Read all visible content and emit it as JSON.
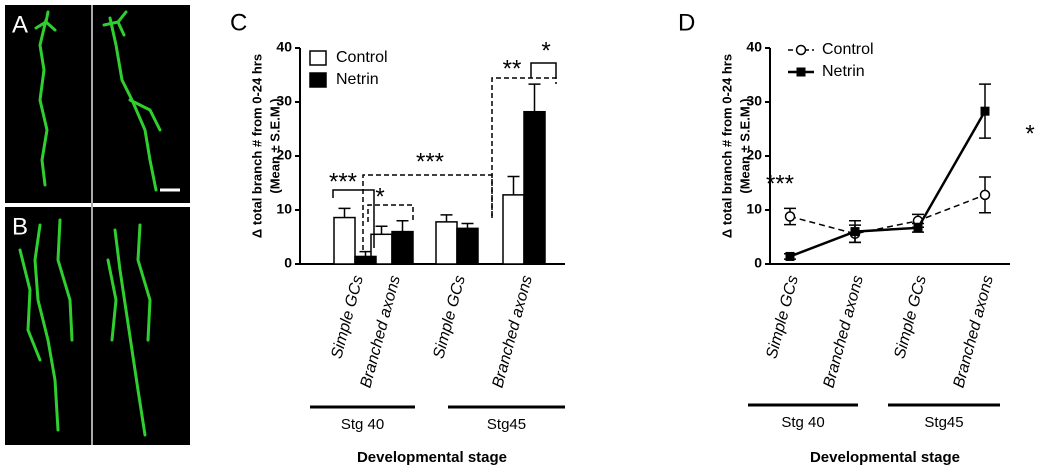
{
  "panels": [
    {
      "label": "A"
    },
    {
      "label": "B"
    }
  ],
  "chart_data": [
    {
      "type": "bar",
      "panel_label": "C",
      "ylabel": [
        "Δ total branch # from 0-24 hrs",
        "(Mean ± S.E.M.)"
      ],
      "xlabel": "Developmental stage",
      "categories": [
        "Simple GCs",
        "Branched axons",
        "Simple GCs",
        "Branched axons"
      ],
      "groups": [
        "Stg 40",
        "Stg45"
      ],
      "series": [
        {
          "name": "Control",
          "color": "#ffffff",
          "values": [
            8.6,
            5.5,
            7.8,
            12.8
          ],
          "errors": [
            1.7,
            1.5,
            1.3,
            3.4
          ]
        },
        {
          "name": "Netrin",
          "color": "#000000",
          "values": [
            1.4,
            6.0,
            6.6,
            28.2
          ],
          "errors": [
            0.9,
            2.0,
            0.9,
            5.1
          ]
        }
      ],
      "ylim": [
        0,
        40
      ],
      "yticks": [
        0,
        10,
        20,
        30,
        40
      ],
      "annotations": [
        "***",
        "*",
        "***",
        "**",
        "*"
      ]
    },
    {
      "type": "line",
      "panel_label": "D",
      "ylabel": [
        "Δ total branch # from 0-24 hrs",
        "(Mean ± S.E.M.)"
      ],
      "xlabel": "Developmental stage",
      "categories": [
        "Simple GCs",
        "Branched axons",
        "Simple GCs",
        "Branched axons"
      ],
      "groups": [
        "Stg 40",
        "Stg45"
      ],
      "series": [
        {
          "name": "Control",
          "color": "#000000",
          "line_style": "dashed",
          "marker": "circle",
          "values": [
            8.8,
            5.6,
            8.0,
            12.8
          ],
          "errors": [
            1.5,
            1.6,
            1.2,
            3.3
          ]
        },
        {
          "name": "Netrin",
          "color": "#000000",
          "line_style": "solid",
          "marker": "square",
          "values": [
            1.4,
            6.0,
            6.7,
            28.3
          ],
          "errors": [
            0.5,
            2.0,
            0.8,
            5.0
          ]
        }
      ],
      "ylim": [
        0,
        40
      ],
      "yticks": [
        0,
        10,
        20,
        30,
        40
      ],
      "annotations": [
        "***",
        "*"
      ]
    }
  ]
}
